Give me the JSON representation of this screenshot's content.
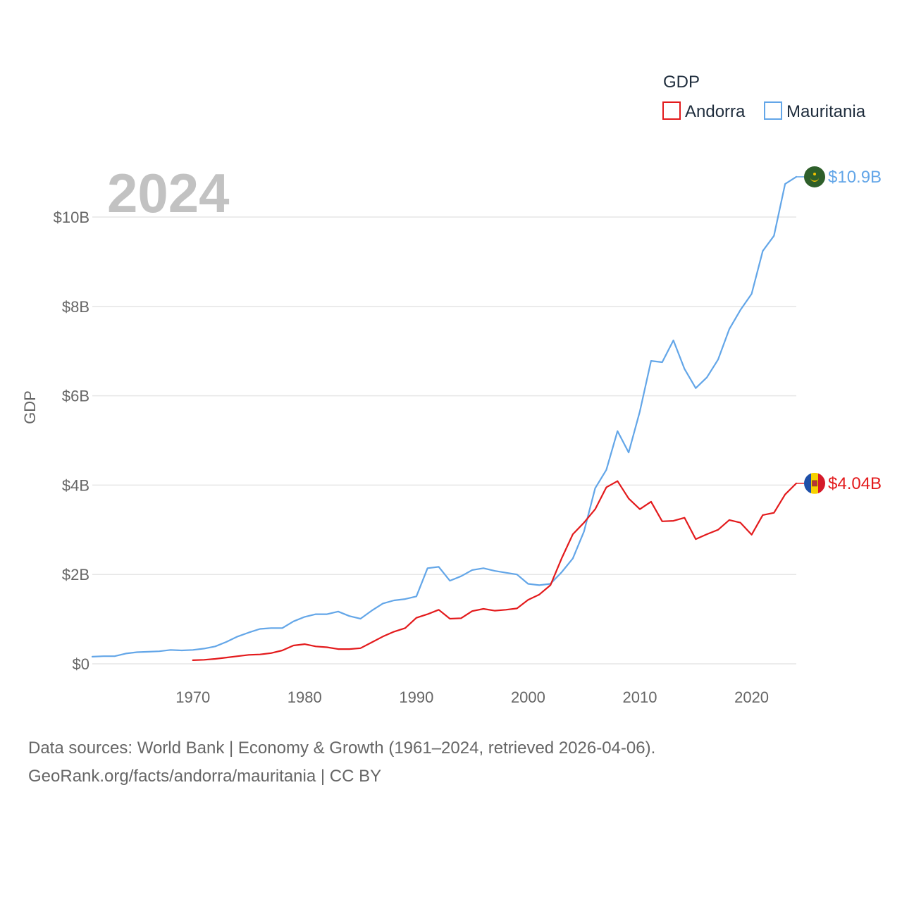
{
  "chart_data": {
    "type": "line",
    "title": "GDP",
    "ylabel": "GDP",
    "xlabel": "",
    "year_label": "2024",
    "xlim": [
      1961,
      2024
    ],
    "ylim": [
      0,
      11000000000
    ],
    "x_ticks": [
      1970,
      1980,
      1990,
      2000,
      2010,
      2020
    ],
    "y_ticks": [
      {
        "value": 0,
        "label": "$0"
      },
      {
        "value": 2000000000,
        "label": "$2B"
      },
      {
        "value": 4000000000,
        "label": "$4B"
      },
      {
        "value": 6000000000,
        "label": "$6B"
      },
      {
        "value": 8000000000,
        "label": "$8B"
      },
      {
        "value": 10000000000,
        "label": "$10B"
      }
    ],
    "legend_title": "GDP",
    "series": [
      {
        "name": "Andorra",
        "color": "#e31a1c",
        "end_label": "$4.04B",
        "flag": "andorra-flag",
        "x": [
          1970,
          1971,
          1972,
          1973,
          1974,
          1975,
          1976,
          1977,
          1978,
          1979,
          1980,
          1981,
          1982,
          1983,
          1984,
          1985,
          1986,
          1987,
          1988,
          1989,
          1990,
          1991,
          1992,
          1993,
          1994,
          1995,
          1996,
          1997,
          1998,
          1999,
          2000,
          2001,
          2002,
          2003,
          2004,
          2005,
          2006,
          2007,
          2008,
          2009,
          2010,
          2011,
          2012,
          2013,
          2014,
          2015,
          2016,
          2017,
          2018,
          2019,
          2020,
          2021,
          2022,
          2023,
          2024
        ],
        "values": [
          0.08,
          0.09,
          0.11,
          0.14,
          0.17,
          0.2,
          0.21,
          0.24,
          0.3,
          0.41,
          0.44,
          0.39,
          0.37,
          0.33,
          0.33,
          0.35,
          0.48,
          0.61,
          0.72,
          0.8,
          1.03,
          1.11,
          1.21,
          1.01,
          1.02,
          1.18,
          1.23,
          1.19,
          1.21,
          1.24,
          1.43,
          1.55,
          1.76,
          2.36,
          2.9,
          3.16,
          3.46,
          3.95,
          4.09,
          3.7,
          3.46,
          3.63,
          3.19,
          3.2,
          3.27,
          2.79,
          2.9,
          3.0,
          3.22,
          3.16,
          2.89,
          3.33,
          3.38,
          3.79,
          4.04
        ]
      },
      {
        "name": "Mauritania",
        "color": "#63a6e8",
        "end_label": "$10.9B",
        "flag": "mauritania-flag",
        "x": [
          1961,
          1962,
          1963,
          1964,
          1965,
          1966,
          1967,
          1968,
          1969,
          1970,
          1971,
          1972,
          1973,
          1974,
          1975,
          1976,
          1977,
          1978,
          1979,
          1980,
          1981,
          1982,
          1983,
          1984,
          1985,
          1986,
          1987,
          1988,
          1989,
          1990,
          1991,
          1992,
          1993,
          1994,
          1995,
          1996,
          1997,
          1998,
          1999,
          2000,
          2001,
          2002,
          2003,
          2004,
          2005,
          2006,
          2007,
          2008,
          2009,
          2010,
          2011,
          2012,
          2013,
          2014,
          2015,
          2016,
          2017,
          2018,
          2019,
          2020,
          2021,
          2022,
          2023,
          2024
        ],
        "values": [
          0.16,
          0.17,
          0.17,
          0.23,
          0.26,
          0.27,
          0.28,
          0.31,
          0.3,
          0.31,
          0.34,
          0.39,
          0.49,
          0.61,
          0.7,
          0.78,
          0.8,
          0.8,
          0.95,
          1.05,
          1.11,
          1.11,
          1.17,
          1.07,
          1.01,
          1.19,
          1.35,
          1.42,
          1.45,
          1.51,
          2.14,
          2.17,
          1.86,
          1.96,
          2.1,
          2.14,
          2.08,
          2.04,
          2.0,
          1.79,
          1.76,
          1.79,
          2.05,
          2.36,
          2.96,
          3.93,
          4.34,
          5.21,
          4.73,
          5.65,
          6.78,
          6.75,
          7.24,
          6.6,
          6.17,
          6.41,
          6.81,
          7.49,
          7.92,
          8.28,
          9.24,
          9.58,
          10.74,
          10.9
        ]
      }
    ]
  },
  "source": {
    "line1": "Data sources: World Bank | Economy & Growth (1961–2024, retrieved 2026-04-06).",
    "line2": "GeoRank.org/facts/andorra/mauritania | CC BY"
  }
}
